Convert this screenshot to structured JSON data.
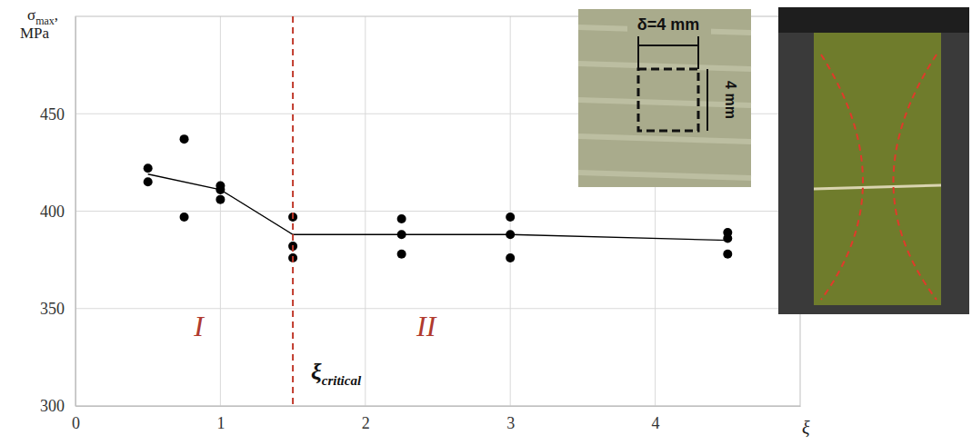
{
  "chart_data": {
    "type": "scatter",
    "y_label": "σmax, MPa",
    "x_label": "ξ",
    "xlim": [
      0,
      5
    ],
    "xticks": [
      0,
      1,
      2,
      3,
      4
    ],
    "ylim": [
      300,
      500
    ],
    "yticks": [
      300,
      350,
      400,
      450
    ],
    "grid": true,
    "tick_labels": true,
    "series": [
      {
        "type": "scatter",
        "color": "#000000",
        "marker": "circle",
        "x": [
          0.5,
          0.5,
          0.75,
          0.75,
          1.0,
          1.0,
          1.0,
          1.5,
          1.5,
          1.5,
          2.25,
          2.25,
          2.25,
          3.0,
          3.0,
          3.0,
          4.5,
          4.5,
          4.5
        ],
        "values": [
          422,
          415,
          437,
          397,
          413,
          411,
          406,
          397,
          382,
          376,
          396,
          388,
          378,
          397,
          388,
          376,
          389,
          386,
          378
        ]
      },
      {
        "type": "line",
        "color": "#000000",
        "line_style": "solid",
        "x": [
          0.5,
          1.0,
          1.5,
          2.25,
          3.0,
          4.5
        ],
        "values": [
          419,
          411,
          388,
          388,
          388,
          385
        ]
      }
    ],
    "vline": {
      "x": 1.5,
      "color": "#c0392b",
      "line_style": "dashed",
      "label": "ξcritical"
    },
    "annotations": [
      {
        "text": "I",
        "x": 0.85,
        "y": 336,
        "color": "#b03a2e"
      },
      {
        "text": "II",
        "x": 2.42,
        "y": 336,
        "color": "#b03a2e"
      }
    ],
    "inset_labels": [
      "δ=4 mm",
      "4 mm"
    ]
  }
}
